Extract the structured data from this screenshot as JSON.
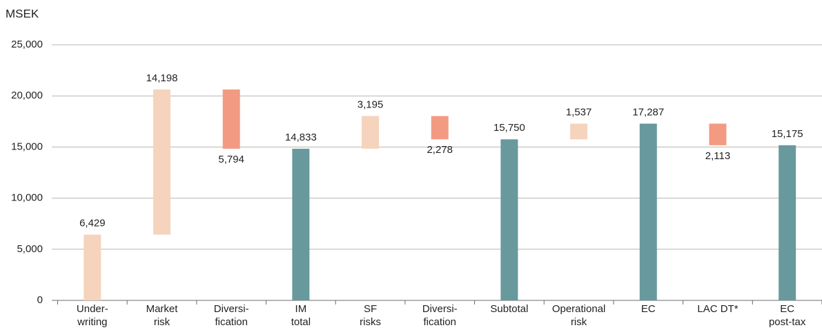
{
  "chart_data": {
    "type": "waterfall",
    "title": "MSEK",
    "categories": [
      [
        "Under-",
        "writing"
      ],
      [
        "Market",
        "risk"
      ],
      [
        "Diversi-",
        "fication"
      ],
      [
        "IM",
        "total"
      ],
      [
        "SF",
        "risks"
      ],
      [
        "Diversi-",
        "fication"
      ],
      [
        "Subtotal"
      ],
      [
        "Operational",
        "risk"
      ],
      [
        "EC"
      ],
      [
        "LAC DT*"
      ],
      [
        "EC",
        "post-tax"
      ]
    ],
    "values": [
      6429,
      14198,
      -5794,
      14833,
      3195,
      -2278,
      15750,
      1537,
      17287,
      -2113,
      15175
    ],
    "value_labels": [
      "6,429",
      "14,198",
      "5,794",
      "14,833",
      "3,195",
      "2,278",
      "15,750",
      "1,537",
      "17,287",
      "2,113",
      "15,175"
    ],
    "measure": [
      "relative",
      "relative",
      "relative",
      "total",
      "relative",
      "relative",
      "total",
      "relative",
      "total",
      "relative",
      "total"
    ],
    "colors": {
      "increase": "#f5d3bc",
      "decrease": "#f39a82",
      "total": "#68999d"
    },
    "ylim": [
      0,
      25000
    ],
    "yticks": [
      0,
      {
        "value": 5000,
        "label": "5,000"
      },
      {
        "value": 10000,
        "label": "10,000"
      },
      {
        "value": 15000,
        "label": "15,000"
      },
      {
        "value": 20000,
        "label": "20,000"
      },
      {
        "value": 25000,
        "label": "25,000"
      }
    ],
    "grid": true
  }
}
